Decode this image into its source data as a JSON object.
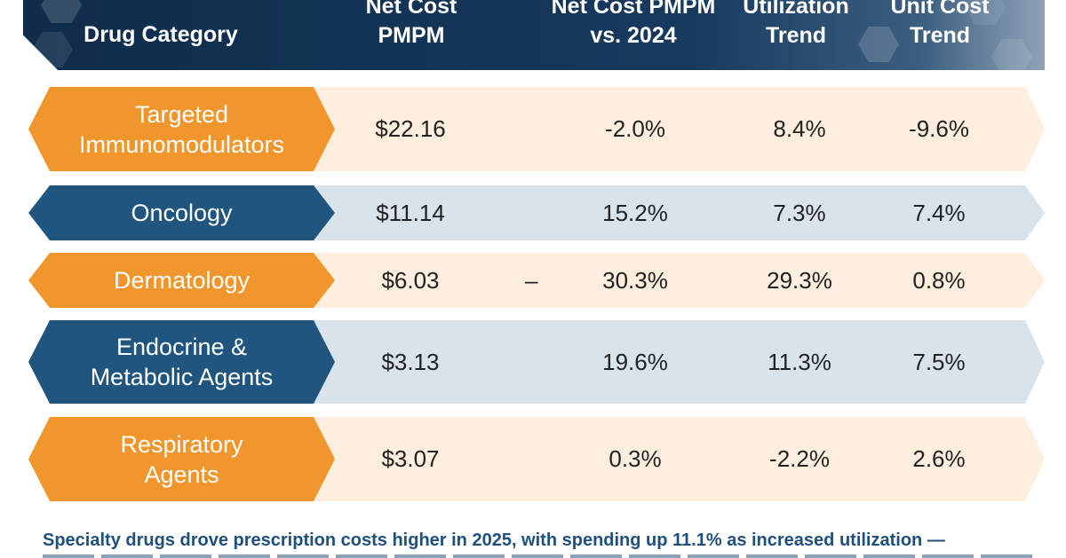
{
  "table": {
    "headers": {
      "category": "Drug Category",
      "net_cost": [
        "Net Cost",
        "PMPM"
      ],
      "net_cost_vs": [
        "Net Cost PMPM",
        "vs. 2024"
      ],
      "utilization": [
        "Utilization",
        "Trend"
      ],
      "unit_cost": [
        "Unit Cost",
        "Trend"
      ]
    },
    "rows": [
      {
        "category": [
          "Targeted",
          "Immunomodulators"
        ],
        "net_cost": "$22.16",
        "net_cost_vs": "-2.0%",
        "utilization": "8.4%",
        "unit_cost": "-9.6%",
        "color": "orange"
      },
      {
        "category": [
          "Oncology"
        ],
        "net_cost": "$11.14",
        "net_cost_vs": "15.2%",
        "utilization": "7.3%",
        "unit_cost": "7.4%",
        "color": "blue"
      },
      {
        "category": [
          "Dermatology"
        ],
        "net_cost": "$6.03",
        "net_cost_vs_dash": "–",
        "net_cost_vs": "30.3%",
        "utilization": "29.3%",
        "unit_cost": "0.8%",
        "color": "orange"
      },
      {
        "category": [
          "Endocrine &",
          "Metabolic Agents"
        ],
        "net_cost": "$3.13",
        "net_cost_vs": "19.6%",
        "utilization": "11.3%",
        "unit_cost": "7.5%",
        "color": "blue"
      },
      {
        "category": [
          "Respiratory",
          "Agents"
        ],
        "net_cost": "$3.07",
        "net_cost_vs": "0.3%",
        "utilization": "-2.2%",
        "unit_cost": "2.6%",
        "color": "orange"
      }
    ]
  },
  "footer": {
    "text": "Specialty drugs drove prescription costs higher in 2025, with spending up 11.1% as increased utilization —"
  },
  "colors": {
    "header_navy": "#163a5e",
    "orange": "#f1962c",
    "blue": "#20557f",
    "orange_band": "#fdeedd",
    "blue_band": "#d9e3ec",
    "footer_text": "#1f4f7d"
  }
}
